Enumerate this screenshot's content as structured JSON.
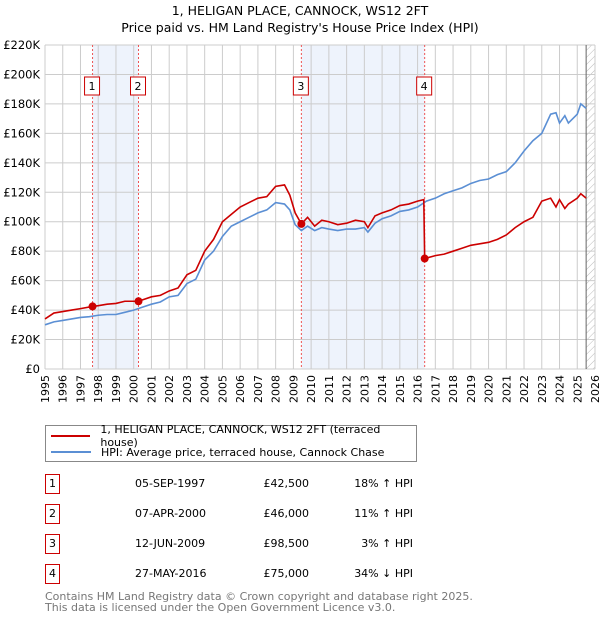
{
  "title": "1, HELIGAN PLACE, CANNOCK, WS12 2FT",
  "subtitle": "Price paid vs. HM Land Registry's House Price Index (HPI)",
  "colors": {
    "property": "#cc0000",
    "hpi": "#5b8fd4",
    "shade": "#eef3fc"
  },
  "chart_data": {
    "type": "line",
    "title": "1, HELIGAN PLACE, CANNOCK, WS12 2FT — Price paid vs. HM Land Registry's House Price Index (HPI)",
    "xlim": [
      1995,
      2026
    ],
    "ylim": [
      0,
      220000
    ],
    "x_ticks": [
      "1995",
      "1996",
      "1997",
      "1998",
      "1999",
      "2000",
      "2001",
      "2002",
      "2003",
      "2004",
      "2005",
      "2006",
      "2007",
      "2008",
      "2009",
      "2010",
      "2011",
      "2012",
      "2013",
      "2014",
      "2015",
      "2016",
      "2017",
      "2018",
      "2019",
      "2020",
      "2021",
      "2022",
      "2023",
      "2024",
      "2025",
      "2026"
    ],
    "y_ticks": [
      {
        "v": 0,
        "label": "£0"
      },
      {
        "v": 20000,
        "label": "£20K"
      },
      {
        "v": 40000,
        "label": "£40K"
      },
      {
        "v": 60000,
        "label": "£60K"
      },
      {
        "v": 80000,
        "label": "£80K"
      },
      {
        "v": 100000,
        "label": "£100K"
      },
      {
        "v": 120000,
        "label": "£120K"
      },
      {
        "v": 140000,
        "label": "£140K"
      },
      {
        "v": 160000,
        "label": "£160K"
      },
      {
        "v": 180000,
        "label": "£180K"
      },
      {
        "v": 200000,
        "label": "£200K"
      },
      {
        "v": 220000,
        "label": "£220K"
      }
    ],
    "shaded_ranges": [
      [
        1997.68,
        2000.27
      ],
      [
        2009.45,
        2016.4
      ]
    ],
    "forecast_from": 2025.5,
    "series": [
      {
        "name": "1, HELIGAN PLACE, CANNOCK, WS12 2FT (terraced house)",
        "x": [
          1995,
          1995.5,
          1996,
          1996.5,
          1997,
          1997.68,
          1998,
          1998.5,
          1999,
          1999.5,
          2000.27,
          2001,
          2001.5,
          2002,
          2002.5,
          2003,
          2003.5,
          2004,
          2004.5,
          2005,
          2005.5,
          2006,
          2006.5,
          2007,
          2007.5,
          2008,
          2008.5,
          2008.8,
          2009.1,
          2009.45,
          2009.8,
          2010.2,
          2010.6,
          2011,
          2011.5,
          2012,
          2012.5,
          2013,
          2013.2,
          2013.6,
          2014,
          2014.5,
          2015,
          2015.5,
          2016,
          2016.35,
          2016.4,
          2017,
          2017.5,
          2018,
          2018.5,
          2019,
          2019.5,
          2020,
          2020.5,
          2021,
          2021.5,
          2022,
          2022.5,
          2023,
          2023.5,
          2023.8,
          2024,
          2024.3,
          2024.5,
          2025,
          2025.2,
          2025.5
        ],
        "values": [
          34000,
          38000,
          39000,
          40000,
          41000,
          42500,
          43000,
          44000,
          44500,
          46000,
          46000,
          49000,
          50000,
          53000,
          55000,
          64000,
          67000,
          80000,
          88000,
          100000,
          105000,
          110000,
          113000,
          116000,
          117000,
          124000,
          125000,
          118000,
          106000,
          98500,
          103000,
          97000,
          101000,
          100000,
          98000,
          99000,
          101000,
          100000,
          96000,
          104000,
          106000,
          108000,
          111000,
          112000,
          114000,
          115000,
          75000,
          77000,
          78000,
          80000,
          82000,
          84000,
          85000,
          86000,
          88000,
          91000,
          96000,
          100000,
          103000,
          114000,
          116000,
          110000,
          115000,
          109000,
          112000,
          116000,
          119000,
          116000
        ]
      },
      {
        "name": "HPI: Average price, terraced house, Cannock Chase",
        "x": [
          1995,
          1995.5,
          1996,
          1996.5,
          1997,
          1997.5,
          1998,
          1998.5,
          1999,
          1999.5,
          2000,
          2000.5,
          2001,
          2001.5,
          2002,
          2002.5,
          2003,
          2003.5,
          2004,
          2004.5,
          2005,
          2005.5,
          2006,
          2006.5,
          2007,
          2007.5,
          2008,
          2008.5,
          2008.8,
          2009.1,
          2009.45,
          2009.8,
          2010.2,
          2010.6,
          2011,
          2011.5,
          2012,
          2012.5,
          2013,
          2013.2,
          2013.6,
          2014,
          2014.5,
          2015,
          2015.5,
          2016,
          2016.5,
          2017,
          2017.5,
          2018,
          2018.5,
          2019,
          2019.5,
          2020,
          2020.5,
          2021,
          2021.5,
          2022,
          2022.5,
          2023,
          2023.5,
          2023.8,
          2024,
          2024.3,
          2024.5,
          2025,
          2025.2,
          2025.5
        ],
        "values": [
          30000,
          32000,
          33000,
          34000,
          35000,
          35500,
          36500,
          37000,
          37000,
          38500,
          40000,
          42000,
          44000,
          45500,
          49000,
          50000,
          58000,
          61000,
          74000,
          80000,
          90000,
          97000,
          100000,
          103000,
          106000,
          108000,
          113000,
          112000,
          108000,
          98000,
          94000,
          97000,
          94000,
          96000,
          95000,
          94000,
          95000,
          95000,
          96000,
          93000,
          99000,
          102000,
          104000,
          107000,
          108000,
          110000,
          114000,
          116000,
          119000,
          121000,
          123000,
          126000,
          128000,
          129000,
          132000,
          134000,
          140000,
          148000,
          155000,
          160000,
          173000,
          174000,
          167000,
          172000,
          167000,
          173000,
          180000,
          177000
        ]
      }
    ],
    "sales": [
      {
        "id": "1",
        "x": 1997.68,
        "y": 42500
      },
      {
        "id": "2",
        "x": 2000.27,
        "y": 46000
      },
      {
        "id": "3",
        "x": 2009.45,
        "y": 98500
      },
      {
        "id": "4",
        "x": 2016.4,
        "y": 75000
      }
    ],
    "legend_position": "below"
  },
  "legend": {
    "property": "1, HELIGAN PLACE, CANNOCK, WS12 2FT (terraced house)",
    "hpi": "HPI: Average price, terraced house, Cannock Chase"
  },
  "transactions": [
    {
      "id": "1",
      "date": "05-SEP-1997",
      "price": "£42,500",
      "hpi": "18% ↑ HPI"
    },
    {
      "id": "2",
      "date": "07-APR-2000",
      "price": "£46,000",
      "hpi": "11% ↑ HPI"
    },
    {
      "id": "3",
      "date": "12-JUN-2009",
      "price": "£98,500",
      "hpi": "3% ↑ HPI"
    },
    {
      "id": "4",
      "date": "27-MAY-2016",
      "price": "£75,000",
      "hpi": "34% ↓ HPI"
    }
  ],
  "footer": [
    "Contains HM Land Registry data © Crown copyright and database right 2025.",
    "This data is licensed under the Open Government Licence v3.0."
  ]
}
